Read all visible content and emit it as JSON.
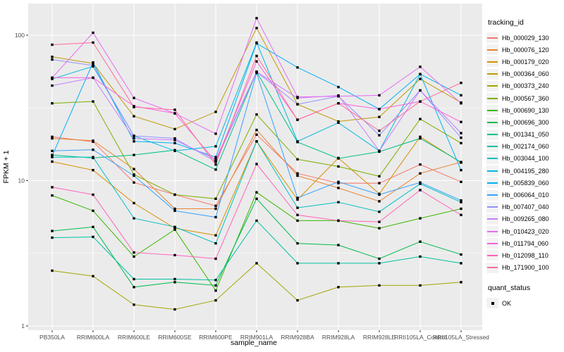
{
  "chart_data": {
    "type": "line",
    "title": "",
    "xlabel": "sample_name",
    "ylabel": "FPKM + 1",
    "yscale": "log10",
    "ylim": [
      1,
      170
    ],
    "y_ticks": [
      1,
      10,
      100
    ],
    "y_minor_ticks": [
      3.162,
      31.62
    ],
    "grid": true,
    "legend_position": "right",
    "point_shape": "filled-black-square",
    "panel_background": "#ebebeb",
    "gridline_color": "#ffffff",
    "categories": [
      "PB350LA",
      "RRIM600LA",
      "RRIM600LE",
      "RRIM600SE",
      "RRIM600PE",
      "RRIM901LA",
      "RRIM928BA",
      "RRIM928LA",
      "RRIM928LE",
      "RRII105LA_Control",
      "RRII105LA_Stressed"
    ],
    "series": [
      {
        "name": "Hb_000029_130",
        "color": "#F8766D",
        "values": [
          20,
          18.5,
          9.7,
          8,
          6.7,
          20.7,
          11.2,
          9.6,
          9.6,
          12.9,
          9.8
        ]
      },
      {
        "name": "Hb_000076_120",
        "color": "#EA8331",
        "values": [
          19.5,
          18.8,
          12,
          6.4,
          6.4,
          22.3,
          10.8,
          8.9,
          7.2,
          11.2,
          13.4
        ]
      },
      {
        "name": "Hb_000179_020",
        "color": "#D89000",
        "values": [
          13.5,
          11.8,
          7,
          4.7,
          4.2,
          18.6,
          7.4,
          14.3,
          8.1,
          20,
          13.3
        ]
      },
      {
        "name": "Hb_000364_060",
        "color": "#C09B00",
        "values": [
          71,
          64,
          27.7,
          22.6,
          29.7,
          112,
          33.5,
          25.5,
          27.4,
          50,
          34.4
        ]
      },
      {
        "name": "Hb_000373_240",
        "color": "#A3A500",
        "values": [
          2.4,
          2.2,
          1.4,
          1.3,
          1.5,
          2.7,
          1.5,
          1.85,
          1.9,
          1.9,
          2
        ]
      },
      {
        "name": "Hb_000567_360",
        "color": "#7CAE00",
        "values": [
          34,
          35,
          11,
          8,
          7.5,
          28.5,
          14,
          12.5,
          10.7,
          26.5,
          18.1
        ]
      },
      {
        "name": "Hb_000690_130",
        "color": "#39B600",
        "values": [
          7.9,
          6.2,
          3,
          4.6,
          1.75,
          8.3,
          5.3,
          5.3,
          4.7,
          5.5,
          6.4
        ]
      },
      {
        "name": "Hb_000696_300",
        "color": "#00BB4E",
        "values": [
          4.5,
          4.8,
          1.85,
          2,
          1.9,
          7.5,
          3.7,
          3.6,
          2.9,
          3.8,
          3.1
        ]
      },
      {
        "name": "Hb_001341_050",
        "color": "#00C087",
        "values": [
          15,
          14.3,
          15,
          16.2,
          11.9,
          56,
          18.4,
          14.2,
          15.8,
          19.5,
          13.4
        ]
      },
      {
        "name": "Hb_002174_060",
        "color": "#00C1A3",
        "values": [
          4.05,
          4.1,
          2.1,
          2.1,
          2.07,
          5.3,
          2.7,
          2.7,
          2.7,
          3,
          2.7
        ]
      },
      {
        "name": "Hb_003044_100",
        "color": "#00BFC4",
        "values": [
          14.5,
          14.5,
          5.5,
          4.8,
          3.7,
          18.6,
          6.5,
          7.1,
          6.1,
          9.5,
          7.1
        ]
      },
      {
        "name": "Hb_004195_280",
        "color": "#00BAE0",
        "values": [
          50,
          61,
          20.3,
          16,
          17.2,
          89,
          18.6,
          25,
          16,
          54,
          38.6
        ]
      },
      {
        "name": "Hb_005839_060",
        "color": "#00B0F6",
        "values": [
          14.8,
          65,
          18.6,
          18.1,
          14.5,
          88,
          60,
          44,
          31,
          54,
          11.8
        ]
      },
      {
        "name": "Hb_006064_010",
        "color": "#35A2FF",
        "values": [
          16,
          16.3,
          10.8,
          6.2,
          5.6,
          55,
          7.6,
          9.8,
          8,
          9.7,
          7.3
        ]
      },
      {
        "name": "Hb_007407_040",
        "color": "#9590FF",
        "values": [
          68,
          62,
          20.3,
          19.5,
          13.5,
          56,
          33.5,
          38,
          20.5,
          41.7,
          19.7
        ]
      },
      {
        "name": "Hb_009265_080",
        "color": "#C77CFF",
        "values": [
          45,
          51,
          19.5,
          19,
          14,
          56,
          37,
          38.5,
          16,
          41.7,
          21.2
        ]
      },
      {
        "name": "Hb_010423_020",
        "color": "#E76BF3",
        "values": [
          51,
          104,
          37,
          29,
          21,
          131,
          37.6,
          38,
          38.6,
          60.6,
          34
        ]
      },
      {
        "name": "Hb_011794_060",
        "color": "#FA62DB",
        "values": [
          51,
          51,
          32.5,
          29,
          13.5,
          66,
          26.2,
          34,
          31,
          35,
          25.3
        ]
      },
      {
        "name": "Hb_012098_110",
        "color": "#FF62BC",
        "values": [
          9,
          8,
          3.2,
          3.07,
          2.9,
          13,
          5.8,
          5.3,
          5.2,
          8.6,
          5.8
        ]
      },
      {
        "name": "Hb_171900_100",
        "color": "#FF6A98",
        "values": [
          86,
          89,
          32,
          30.7,
          12.9,
          72,
          26.2,
          34,
          22,
          35,
          47
        ]
      }
    ]
  },
  "y_axis": {
    "label": "FPKM + 1",
    "tick_labels": [
      "100",
      "10",
      "1"
    ]
  },
  "x_axis": {
    "label": "sample_name"
  },
  "legend": {
    "title": "tracking_id",
    "quant_title": "quant_status",
    "quant_items": [
      {
        "label": "OK"
      }
    ]
  }
}
